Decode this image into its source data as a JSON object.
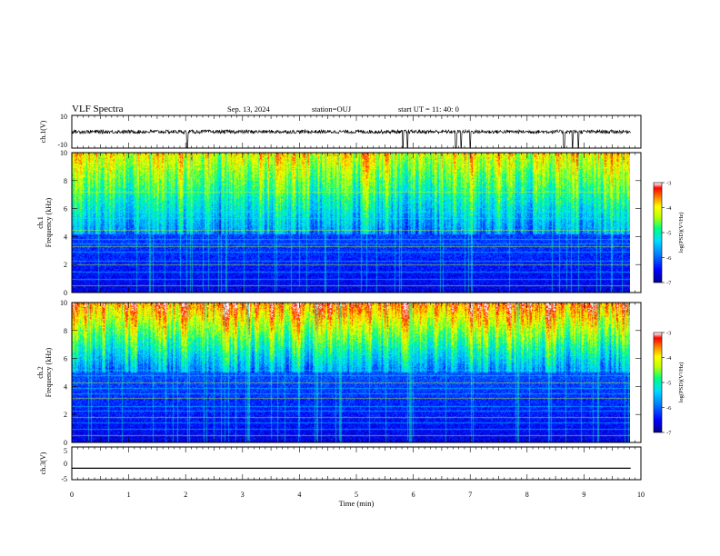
{
  "header": {
    "title": "VLF Spectra",
    "date": "Sep. 13, 2024",
    "station": "station=OUJ",
    "start": "start  UT =   11: 40: 0"
  },
  "chart_data": [
    {
      "type": "line",
      "panel": "ch1-waveform",
      "ylabel": "ch.1(V)",
      "ylim": [
        -10,
        10
      ],
      "y_ticks": [
        "10",
        "-10"
      ],
      "series_desc": "noisy baseline near 0 V with sparse negative spikes",
      "baseline": 0,
      "spikes_x_min": [
        2.03,
        5.82,
        5.9,
        6.75,
        6.84,
        7.0,
        8.65,
        8.8,
        8.9
      ]
    },
    {
      "type": "heatmap",
      "panel": "ch1-spectrogram",
      "ylabel_line1": "ch.1",
      "ylabel_line2": "Frequency (kHz)",
      "ylim": [
        0,
        10
      ],
      "y_ticks": [
        "0",
        "2",
        "4",
        "6",
        "8",
        "10"
      ],
      "colorbar_label": "log(PSD)(V²/Hz)",
      "colorbar_range": [
        -7,
        -3
      ],
      "colorbar_ticks": [
        "-3",
        "-4",
        "-5",
        "-6",
        "-7"
      ],
      "quiet_band_top_kHz": 4.2,
      "lines_kHz": [
        0.5,
        1.0,
        1.5,
        2.0,
        2.3,
        2.9,
        3.3,
        3.5,
        3.8,
        4.5,
        5.3,
        5.8,
        7.2
      ]
    },
    {
      "type": "heatmap",
      "panel": "ch2-spectrogram",
      "ylabel_line1": "ch.2",
      "ylabel_line2": "Frequency (kHz)",
      "ylim": [
        0,
        10
      ],
      "y_ticks": [
        "0",
        "2",
        "4",
        "6",
        "8",
        "10"
      ],
      "colorbar_label": "log(PSD)(V²/Hz)",
      "colorbar_range": [
        -7,
        -3
      ],
      "colorbar_ticks": [
        "-3",
        "-4",
        "-5",
        "-6",
        "-7"
      ],
      "quiet_band_top_kHz": 5.0,
      "lines_kHz": [
        0.5,
        1.0,
        1.4,
        1.8,
        2.3,
        2.6,
        3.2,
        3.5,
        3.9,
        4.3,
        4.8,
        5.2
      ]
    },
    {
      "type": "line",
      "panel": "ch3-waveform",
      "ylabel": "ch.3(V)",
      "ylim": [
        -5,
        5
      ],
      "y_ticks": [
        "5",
        "0",
        "-5"
      ],
      "constant_value": -1.5
    }
  ],
  "xaxis": {
    "label": "Time  (min)",
    "ticks": [
      "0",
      "1",
      "2",
      "3",
      "4",
      "5",
      "6",
      "7",
      "8",
      "9",
      "10"
    ],
    "range": [
      0,
      10
    ],
    "data_end": 9.82
  },
  "colormap": [
    "#00008f",
    "#0000ff",
    "#0080ff",
    "#00e0ff",
    "#00ff80",
    "#c0ff00",
    "#ffff00",
    "#ff8000",
    "#ff0000",
    "#ffffff"
  ]
}
